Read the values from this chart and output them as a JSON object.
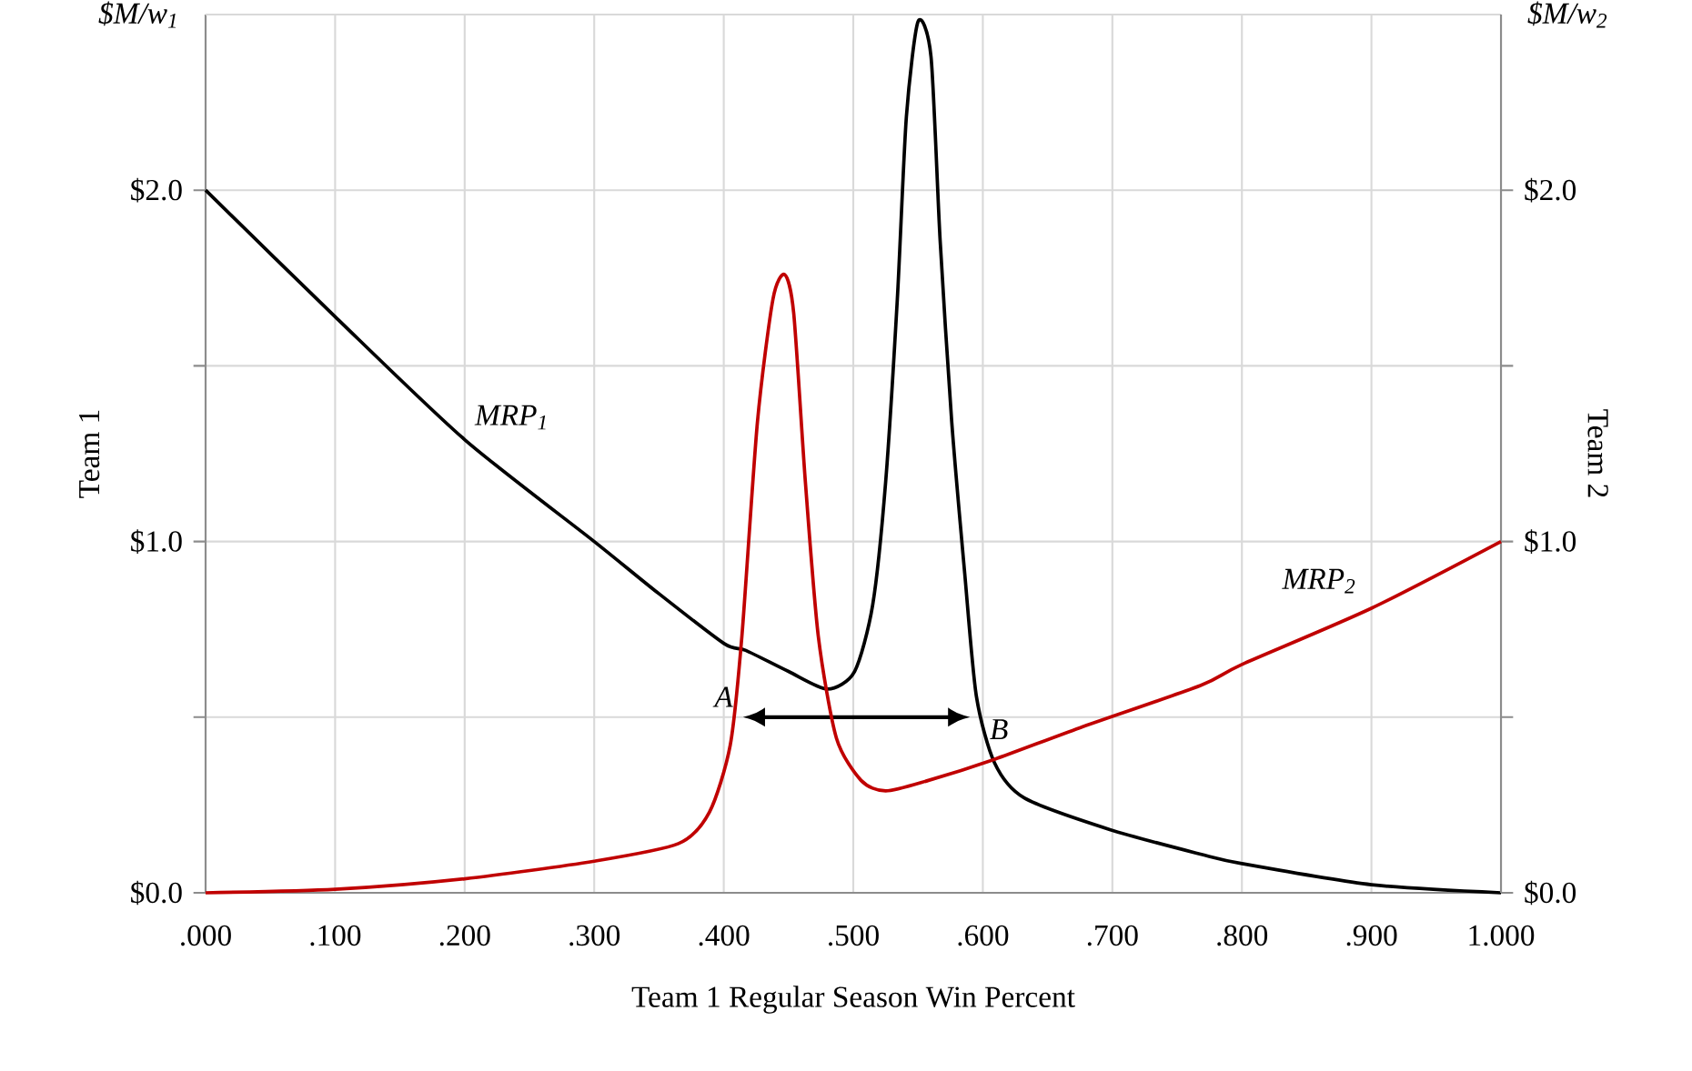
{
  "chart_data": {
    "type": "line",
    "xlabel": "Team 1 Regular Season Win Percent",
    "ylabel": "Team 1",
    "y2label": "Team 2",
    "xlim": [
      0,
      1
    ],
    "xticks": [
      {
        "value": 0,
        "label": ".000"
      },
      {
        "value": 0.1,
        "label": ".100"
      },
      {
        "value": 0.2,
        "label": ".200"
      },
      {
        "value": 0.3,
        "label": ".300"
      },
      {
        "value": 0.4,
        "label": ".400"
      },
      {
        "value": 0.5,
        "label": ".500"
      },
      {
        "value": 0.6,
        "label": ".600"
      },
      {
        "value": 0.7,
        "label": ".700"
      },
      {
        "value": 0.8,
        "label": ".800"
      },
      {
        "value": 0.9,
        "label": ".900"
      },
      {
        "value": 1,
        "label": "1.000"
      }
    ],
    "ylim": [
      0,
      2.5
    ],
    "yticks": [
      {
        "value": 0,
        "label": "$0.0"
      },
      {
        "value": 0.5,
        "label": null
      },
      {
        "value": 1,
        "label": "$1.0"
      },
      {
        "value": 1.5,
        "label": null
      },
      {
        "value": 2,
        "label": "$2.0"
      }
    ],
    "y2lim": [
      0,
      2.5
    ],
    "y2ticks": [
      {
        "value": 0,
        "label": "$0.0"
      },
      {
        "value": 0.5,
        "label": null
      },
      {
        "value": 1,
        "label": "$1.0"
      },
      {
        "value": 1.5,
        "label": null
      },
      {
        "value": 2,
        "label": "$2.0"
      }
    ],
    "grid": true,
    "legend": false,
    "line_style": "solid",
    "annotations": [
      "$M/w$_{1}$",
      "$M/w$_{2}$",
      {
        "text": "A",
        "x": 0.415,
        "y": 0.5
      },
      {
        "text": "B",
        "x": 0.59,
        "y": 0.5
      }
    ],
    "series": [
      {
        "name": "MRP$_{1}$",
        "color": "#000000",
        "x": [
          0,
          0.1,
          0.2,
          0.3,
          0.347,
          0.4,
          0.417,
          0.45,
          0.48,
          0.501,
          0.515,
          0.525,
          0.534,
          0.541,
          0.55,
          0.56,
          0.567,
          0.576,
          0.586,
          0.595,
          0.609,
          0.632,
          0.698,
          0.768,
          0.8,
          0.9,
          1.0
        ],
        "values": [
          2.0,
          1.64,
          1.29,
          1.0,
          0.86,
          0.71,
          0.69,
          0.63,
          0.58,
          0.63,
          0.82,
          1.17,
          1.69,
          2.21,
          2.48,
          2.38,
          1.86,
          1.34,
          0.91,
          0.56,
          0.37,
          0.27,
          0.18,
          0.11,
          0.083,
          0.023,
          0.0
        ]
      },
      {
        "name": "MRP$_{2}$",
        "color": "#c00000",
        "axis": "y2",
        "x": [
          0,
          0.1,
          0.2,
          0.3,
          0.365,
          0.389,
          0.405,
          0.414,
          0.426,
          0.438,
          0.447,
          0.454,
          0.463,
          0.473,
          0.487,
          0.506,
          0.525,
          0.558,
          0.609,
          0.675,
          0.768,
          0.8,
          0.9,
          1.0
        ],
        "values": [
          0,
          0.01,
          0.04,
          0.09,
          0.14,
          0.23,
          0.42,
          0.73,
          1.34,
          1.69,
          1.76,
          1.65,
          1.17,
          0.73,
          0.44,
          0.32,
          0.29,
          0.32,
          0.38,
          0.47,
          0.59,
          0.65,
          0.81,
          1.0
        ]
      }
    ]
  }
}
